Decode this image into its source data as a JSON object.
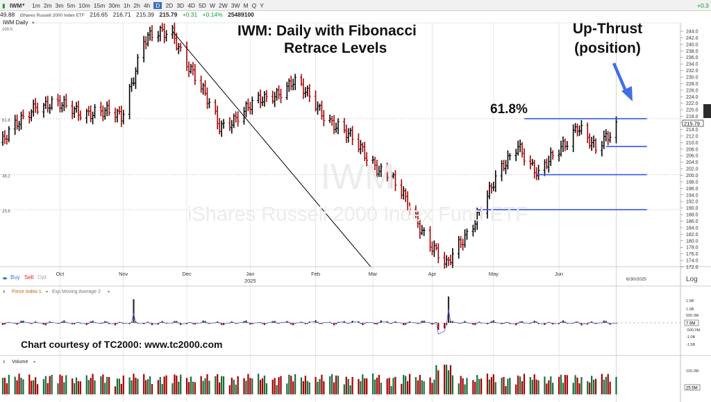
{
  "toolbar": {
    "symbol": "IWM",
    "timeframes": [
      "1m",
      "2m",
      "3m",
      "5m",
      "10m",
      "15m",
      "30m",
      "1h",
      "2h",
      "4h",
      "D",
      "2D",
      "3D",
      "4D",
      "5D",
      "W",
      "2W",
      "3W",
      "M",
      "Q",
      "Y"
    ],
    "active_timeframe": "D",
    "right_value": "+0.3"
  },
  "quote": {
    "price_left": "49.88",
    "name": "iShares Russell 2000 Index ETF",
    "open": "216.65",
    "high": "216.71",
    "low": "215.39",
    "close": "215.79",
    "change": "+0.31",
    "change_pct": "+0.14%",
    "volume": "25489100"
  },
  "colors": {
    "up_bar": "#000000",
    "down_bar": "#a40000",
    "fib_line": "#3355ee",
    "annotation_arrow": "#3f6fe8",
    "ema_line": "#4e5fcf",
    "gridline": "#d8d8d8"
  },
  "main_panel": {
    "label": "IWM Daily",
    "watermark_symbol": "IWM",
    "watermark_name": "iShares Russell 2000 Index Fund ETF",
    "buy": "Buy",
    "sell": "Sell",
    "opt": "Opt",
    "log": "Log",
    "date_marker": "6/30/2025",
    "last_price": "215.79",
    "left_top": "100.0",
    "left_levels": [
      {
        "label": "61.8",
        "price": 217.3
      },
      {
        "label": "38.2",
        "price": 200.2
      },
      {
        "label": "23.6",
        "price": 189.5
      }
    ]
  },
  "annotations": {
    "title_line1": "IWM:  Daily with Fibonacci",
    "title_line2": "Retrace Levels",
    "upthrust_line1": "Up-Thrust",
    "upthrust_line2": "(position)",
    "fib_label": "61.8%",
    "credit": "Chart courtesy of TC2000:  www.tc2000.com"
  },
  "indicator1": {
    "label": "Force Index 1",
    "label2": "Exp Moving Average 2",
    "last_value": "7.9M"
  },
  "indicator2": {
    "label": "Volume",
    "last_value": "25.5M"
  },
  "chart_data": {
    "type": "ohlc",
    "x_tick_labels": [
      {
        "label": "Oct",
        "date": "2024-10-01"
      },
      {
        "label": "Nov",
        "date": "2024-11-01"
      },
      {
        "label": "Dec",
        "date": "2024-12-02"
      },
      {
        "label": "Jan",
        "date": "2025-01-02",
        "sub": "2025"
      },
      {
        "label": "Feb",
        "date": "2025-02-03"
      },
      {
        "label": "Mar",
        "date": "2025-03-03"
      },
      {
        "label": "Apr",
        "date": "2025-04-01"
      },
      {
        "label": "May",
        "date": "2025-05-01"
      },
      {
        "label": "Jun",
        "date": "2025-06-02"
      }
    ],
    "xlim": [
      "2024-09-03",
      "2025-07-15"
    ],
    "y_axis": {
      "ylim": [
        171,
        245
      ],
      "ticks_from": 172,
      "ticks_to": 244,
      "step": 2
    },
    "monthly_closes": [
      {
        "month": "2024-09",
        "close": 220.1
      },
      {
        "month": "2024-10",
        "close": 217.9
      },
      {
        "month": "2024-11",
        "close": 240.0
      },
      {
        "month": "2024-12",
        "close": 221.0
      },
      {
        "month": "2025-01",
        "close": 226.8
      },
      {
        "month": "2025-02",
        "close": 215.5
      },
      {
        "month": "2025-03",
        "close": 198.0
      },
      {
        "month": "2025-04",
        "close": 194.2
      },
      {
        "month": "2025-05",
        "close": 204.8
      },
      {
        "month": "2025-06",
        "close": 215.8
      }
    ],
    "key_points": [
      {
        "date": "2024-09-03",
        "price": 210.0
      },
      {
        "date": "2024-09-19",
        "price": 222.0
      },
      {
        "date": "2024-10-31",
        "price": 218.0
      },
      {
        "date": "2024-11-11",
        "price": 241.5
      },
      {
        "date": "2024-11-25",
        "price": 243.7
      },
      {
        "date": "2024-12-18",
        "price": 215.0
      },
      {
        "date": "2025-01-23",
        "price": 228.5
      },
      {
        "date": "2025-03-13",
        "price": 198.0
      },
      {
        "date": "2025-04-08",
        "price": 171.7
      },
      {
        "date": "2025-05-13",
        "price": 210.0
      },
      {
        "date": "2025-05-23",
        "price": 199.5
      },
      {
        "date": "2025-06-11",
        "price": 215.5
      },
      {
        "date": "2025-06-20",
        "price": 207.0
      },
      {
        "date": "2025-06-30",
        "price": 215.79
      }
    ],
    "trend_line": {
      "from": {
        "date": "2024-11-25",
        "price": 244.0
      },
      "to": {
        "date": "2025-03-02",
        "price": 172.0
      }
    },
    "fib_levels": [
      {
        "label": "61.8%",
        "price": 217.3,
        "from": "2025-05-16",
        "to": "2025-07-15"
      },
      {
        "price": 208.8,
        "from": "2025-06-25",
        "to": "2025-07-15"
      },
      {
        "price": 200.2,
        "from": "2025-05-22",
        "to": "2025-07-15"
      },
      {
        "price": 189.5,
        "from": "2025-04-23",
        "to": "2025-07-15"
      }
    ],
    "force_index_ticks": [
      "1.5B",
      "1.0B",
      "500.0M",
      "-500.0M",
      "-1.0B",
      "-1.5B"
    ],
    "volume_ticks": [
      "100.0M"
    ]
  }
}
